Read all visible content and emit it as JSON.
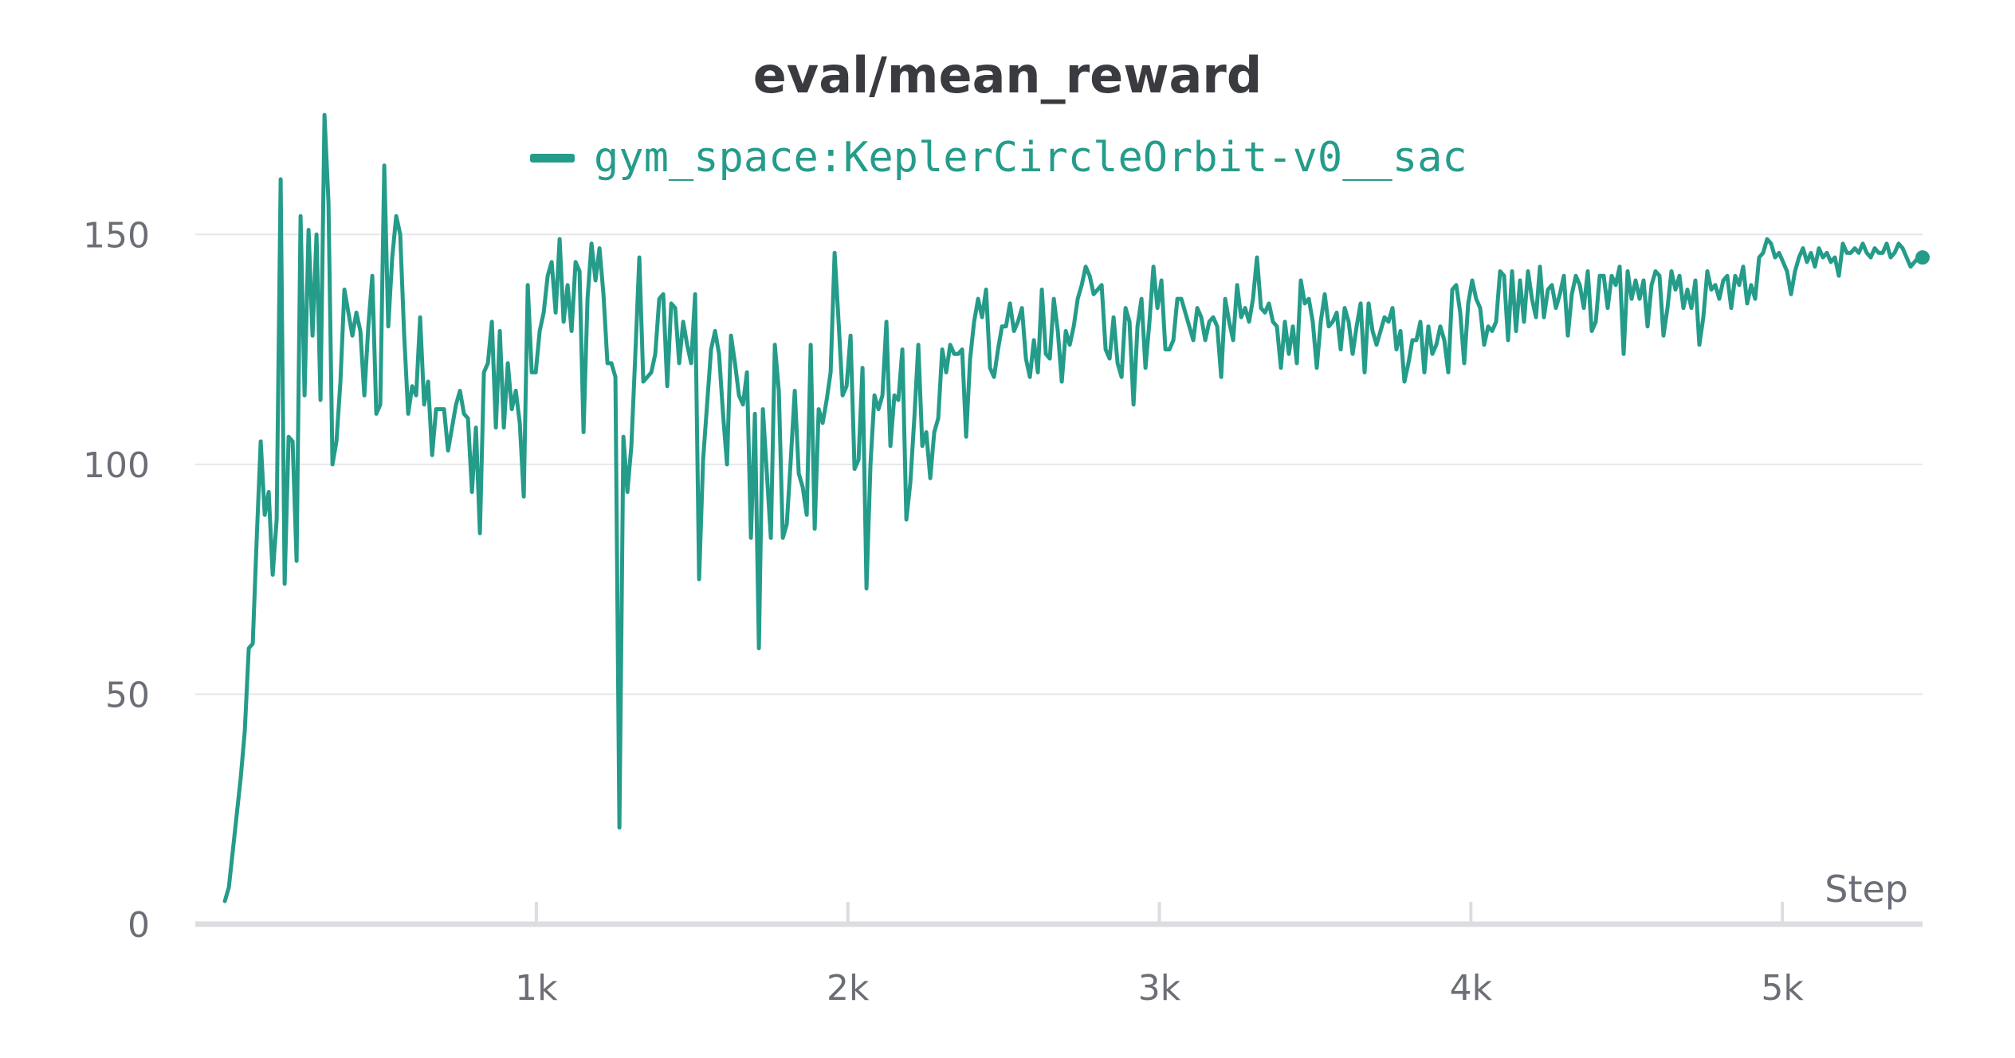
{
  "chart": {
    "title": "eval/mean_reward",
    "legend_label": "gym_space:KeplerCircleOrbit-v0__sac",
    "color": "#259c8a",
    "xlabel": "Step"
  },
  "chart_data": {
    "type": "line",
    "title": "eval/mean_reward",
    "xlabel": "Step",
    "ylabel": "",
    "xlim": [
      -95,
      5450
    ],
    "ylim": [
      0,
      175
    ],
    "grid": true,
    "legend_position": "top-center",
    "xticks": [
      {
        "value": 1000,
        "label": "1k"
      },
      {
        "value": 2000,
        "label": "2k"
      },
      {
        "value": 3000,
        "label": "3k"
      },
      {
        "value": 4000,
        "label": "4k"
      },
      {
        "value": 5000,
        "label": "5k"
      }
    ],
    "yticks": [
      {
        "value": 0,
        "label": "0"
      },
      {
        "value": 50,
        "label": "50"
      },
      {
        "value": 100,
        "label": "100"
      },
      {
        "value": 150,
        "label": "150"
      }
    ],
    "series": [
      {
        "name": "gym_space:KeplerCircleOrbit-v0__sac",
        "color": "#259c8a",
        "values": [
          5,
          8,
          16,
          24,
          32,
          42,
          60,
          61,
          84,
          105,
          89,
          94,
          76,
          88,
          162,
          74,
          106,
          105,
          79,
          154,
          115,
          151,
          128,
          150,
          114,
          176,
          157,
          100,
          105,
          118,
          138,
          133,
          128,
          133,
          129,
          115,
          130,
          141,
          111,
          113,
          165,
          130,
          145,
          154,
          150,
          128,
          111,
          117,
          115,
          132,
          113,
          118,
          102,
          112,
          112,
          112,
          103,
          108,
          113,
          116,
          111,
          110,
          94,
          108,
          85,
          120,
          122,
          131,
          108,
          129,
          108,
          122,
          112,
          116,
          109,
          93,
          139,
          120,
          120,
          129,
          133,
          141,
          144,
          133,
          149,
          131,
          139,
          129,
          144,
          142,
          107,
          136,
          148,
          140,
          147,
          137,
          122,
          122,
          119,
          21,
          106,
          94,
          104,
          124,
          145,
          118,
          119,
          120,
          124,
          136,
          137,
          117,
          135,
          134,
          122,
          131,
          126,
          122,
          137,
          75,
          101,
          113,
          125,
          129,
          124,
          111,
          100,
          128,
          122,
          115,
          113,
          120,
          84,
          111,
          60,
          112,
          98,
          84,
          126,
          116,
          84,
          87,
          101,
          116,
          98,
          95,
          89,
          126,
          86,
          112,
          109,
          114,
          120,
          146,
          131,
          115,
          117,
          128,
          99,
          101,
          121,
          73,
          100,
          115,
          112,
          115,
          131,
          104,
          115,
          114,
          125,
          88,
          96,
          110,
          126,
          104,
          107,
          97,
          107,
          110,
          125,
          120,
          126,
          124,
          124,
          125,
          106,
          123,
          131,
          136,
          132,
          138,
          121,
          119,
          125,
          130,
          130,
          135,
          129,
          131,
          134,
          123,
          119,
          127,
          120,
          138,
          124,
          123,
          136,
          129,
          118,
          129,
          126,
          130,
          136,
          139,
          143,
          141,
          137,
          138,
          139,
          125,
          123,
          132,
          122,
          119,
          134,
          131,
          113,
          130,
          136,
          121,
          131,
          143,
          134,
          140,
          125,
          125,
          127,
          136,
          136,
          133,
          130,
          127,
          134,
          132,
          127,
          131,
          132,
          130,
          119,
          136,
          131,
          127,
          139,
          132,
          134,
          131,
          136,
          145,
          134,
          133,
          135,
          131,
          130,
          121,
          131,
          124,
          130,
          122,
          140,
          135,
          136,
          131,
          121,
          131,
          137,
          130,
          131,
          133,
          125,
          134,
          131,
          124,
          130,
          135,
          120,
          135,
          129,
          126,
          129,
          132,
          131,
          134,
          125,
          129,
          118,
          122,
          127,
          127,
          131,
          120,
          130,
          124,
          126,
          130,
          127,
          120,
          138,
          139,
          133,
          122,
          135,
          140,
          136,
          134,
          126,
          130,
          129,
          131,
          142,
          141,
          127,
          142,
          129,
          140,
          131,
          142,
          136,
          132,
          143,
          132,
          138,
          139,
          134,
          137,
          141,
          128,
          137,
          141,
          139,
          134,
          142,
          129,
          131,
          141,
          141,
          134,
          141,
          139,
          143,
          124,
          142,
          136,
          140,
          136,
          140,
          130,
          139,
          142,
          141,
          128,
          134,
          142,
          138,
          141,
          134,
          138,
          134,
          140,
          126,
          132,
          142,
          138,
          139,
          136,
          140,
          141,
          134,
          141,
          139,
          143,
          135,
          139,
          136,
          145,
          146,
          149,
          148,
          145,
          146,
          144,
          142,
          137,
          142,
          145,
          147,
          144,
          146,
          143,
          147,
          145,
          146,
          144,
          145,
          141,
          148,
          146,
          146,
          147,
          146,
          148,
          146,
          145,
          147,
          146,
          146,
          148,
          145,
          146,
          148,
          147,
          145,
          143,
          144,
          145,
          145
        ]
      }
    ]
  }
}
